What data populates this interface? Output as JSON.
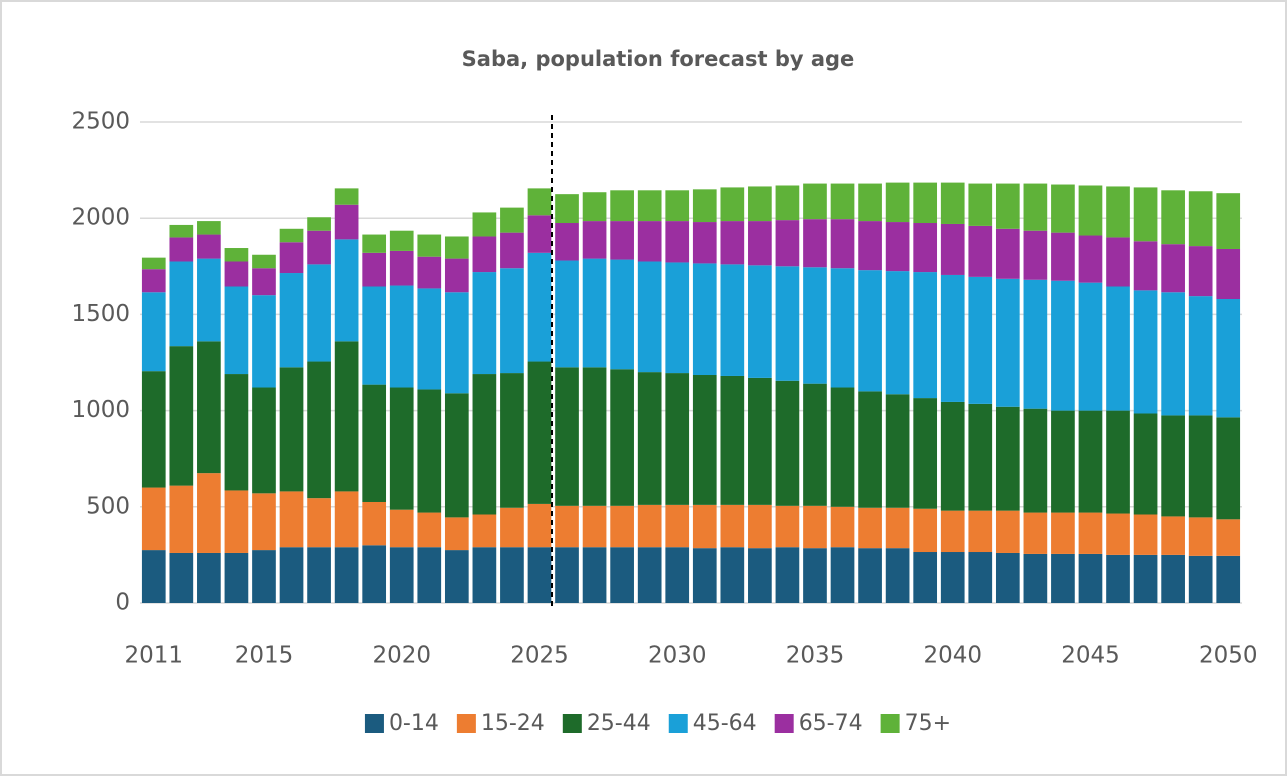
{
  "chart_data": {
    "type": "bar",
    "stacked": true,
    "title": "Saba, population forecast by age",
    "categories": [
      "2011",
      null,
      null,
      null,
      "2015",
      null,
      null,
      null,
      null,
      "2020",
      null,
      null,
      null,
      null,
      "2025",
      null,
      null,
      null,
      null,
      "2030",
      null,
      null,
      null,
      null,
      "2035",
      null,
      null,
      null,
      null,
      "2040",
      null,
      null,
      null,
      null,
      "2045",
      null,
      null,
      null,
      null,
      "2050"
    ],
    "series": [
      {
        "name": "0-14",
        "color": "#1b5b7f",
        "values": [
          275,
          260,
          260,
          260,
          275,
          290,
          290,
          290,
          300,
          290,
          290,
          275,
          290,
          290,
          290,
          290,
          290,
          290,
          290,
          290,
          285,
          290,
          285,
          290,
          285,
          290,
          285,
          285,
          265,
          265,
          265,
          260,
          255,
          255,
          255,
          250,
          250,
          250,
          245,
          245
        ]
      },
      {
        "name": "15-24",
        "color": "#ed7d31",
        "values": [
          325,
          350,
          415,
          325,
          295,
          290,
          255,
          290,
          225,
          195,
          180,
          170,
          170,
          205,
          225,
          215,
          215,
          215,
          220,
          220,
          225,
          220,
          225,
          215,
          220,
          210,
          210,
          210,
          225,
          215,
          215,
          220,
          215,
          215,
          215,
          215,
          210,
          200,
          200,
          190
        ]
      },
      {
        "name": "25-44",
        "color": "#1e6b2a",
        "values": [
          605,
          725,
          685,
          605,
          550,
          645,
          710,
          780,
          610,
          635,
          640,
          645,
          730,
          700,
          740,
          720,
          720,
          710,
          690,
          685,
          675,
          670,
          660,
          650,
          635,
          620,
          605,
          590,
          575,
          565,
          555,
          540,
          540,
          530,
          530,
          535,
          525,
          525,
          530,
          530
        ]
      },
      {
        "name": "45-64",
        "color": "#1aa0d8",
        "values": [
          410,
          440,
          430,
          455,
          480,
          490,
          505,
          530,
          510,
          530,
          525,
          525,
          530,
          545,
          565,
          555,
          565,
          570,
          575,
          575,
          580,
          580,
          585,
          595,
          605,
          620,
          630,
          640,
          655,
          660,
          660,
          665,
          670,
          675,
          665,
          645,
          640,
          640,
          620,
          615
        ]
      },
      {
        "name": "65-74",
        "color": "#9b2fa0",
        "values": [
          120,
          125,
          125,
          130,
          140,
          160,
          175,
          180,
          175,
          180,
          165,
          175,
          185,
          185,
          195,
          195,
          195,
          200,
          210,
          215,
          215,
          225,
          230,
          240,
          250,
          255,
          255,
          255,
          255,
          265,
          265,
          260,
          255,
          250,
          245,
          255,
          255,
          250,
          260,
          260
        ]
      },
      {
        "name": "75+",
        "color": "#5fb239",
        "values": [
          60,
          65,
          70,
          70,
          70,
          70,
          70,
          85,
          95,
          105,
          115,
          115,
          125,
          130,
          140,
          150,
          150,
          160,
          160,
          160,
          170,
          175,
          180,
          180,
          185,
          185,
          195,
          205,
          210,
          215,
          220,
          235,
          245,
          250,
          260,
          265,
          280,
          280,
          285,
          290
        ]
      }
    ],
    "ylim": [
      0,
      2500
    ],
    "yticks": [
      0,
      500,
      1000,
      1500,
      2000,
      2500
    ],
    "grid": true,
    "legend": "bottom"
  }
}
